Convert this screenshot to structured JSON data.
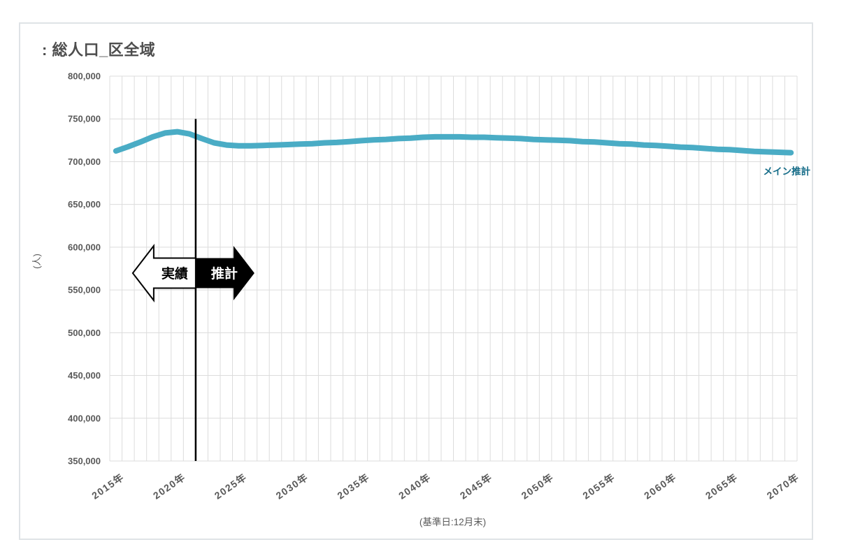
{
  "card": {
    "title": ": 総人口_区全域"
  },
  "chart_data": {
    "type": "line",
    "title": ": 総人口_区全域",
    "ylabel": "(人)",
    "xlabel": "(基準日:12月末)",
    "x_start": 2015,
    "x_end": 2070,
    "x_tick_step": 5,
    "x_tick_suffix": "年",
    "ylim": [
      350000,
      800000
    ],
    "ytick_step": 50000,
    "grid": true,
    "legend_position": "right-of-line-end",
    "series": [
      {
        "name": "メイン推計",
        "values": [
          712500,
          717500,
          723000,
          729000,
          733500,
          735000,
          732500,
          727000,
          722000,
          719500,
          718500,
          718500,
          719000,
          719500,
          720000,
          720500,
          721000,
          722000,
          722500,
          723500,
          724500,
          725500,
          726000,
          727000,
          727500,
          728500,
          729000,
          729000,
          729000,
          728500,
          728500,
          728000,
          727500,
          727000,
          726000,
          725500,
          725000,
          724500,
          723500,
          723000,
          722000,
          721000,
          720500,
          719500,
          719000,
          718000,
          717000,
          716500,
          715500,
          714500,
          714000,
          713000,
          712000,
          711500,
          711000,
          710500
        ]
      }
    ],
    "annotations": {
      "divider_x": 2021.5,
      "divider_top_value": 750000,
      "actual_label": "実績",
      "projection_label": "推計"
    }
  },
  "colors": {
    "line": "#4aacc5",
    "legend_text": "#156c88",
    "title_text": "#4d4d4d",
    "axis_text": "#595959",
    "gridline": "#dcdcdc",
    "divider": "#000000",
    "arrow_black": "#000000",
    "arrow_white": "#ffffff",
    "card_border": "#dfe3e6"
  }
}
